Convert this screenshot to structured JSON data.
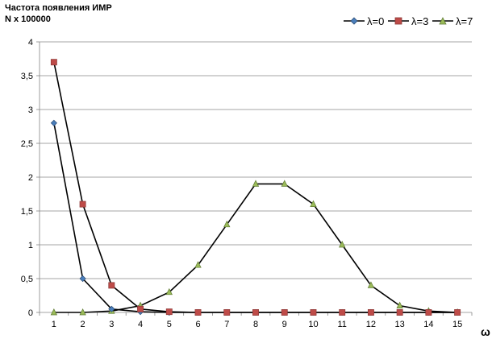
{
  "chart_data": {
    "type": "line",
    "ylabel_lines": [
      "Частота появления ИМР",
      "N x 100000"
    ],
    "xlabel": "ω",
    "x": [
      1,
      2,
      3,
      4,
      5,
      6,
      7,
      8,
      9,
      10,
      11,
      12,
      13,
      14,
      15
    ],
    "ylim": [
      0,
      4
    ],
    "yticks": [
      "0",
      "0,5",
      "1",
      "1,5",
      "2",
      "2,5",
      "3",
      "3,5",
      "4"
    ],
    "grid": "horizontal",
    "legend_position": "top-right",
    "series": [
      {
        "name": "λ=0",
        "marker": "diamond",
        "color": "#4a7ebb",
        "values": [
          2.8,
          0.5,
          0.05,
          0.01,
          0.0,
          0.0,
          0.0,
          0.0,
          0.0,
          0.0,
          0.0,
          0.0,
          0.0,
          0.0,
          0.0
        ]
      },
      {
        "name": "λ=3",
        "marker": "square",
        "color": "#be4b48",
        "values": [
          3.7,
          1.6,
          0.4,
          0.05,
          0.01,
          0.0,
          0.0,
          0.0,
          0.0,
          0.0,
          0.0,
          0.0,
          0.0,
          0.0,
          0.0
        ]
      },
      {
        "name": "λ=7",
        "marker": "triangle",
        "color": "#9bbb59",
        "values": [
          0.0,
          0.0,
          0.02,
          0.1,
          0.3,
          0.7,
          1.3,
          1.9,
          1.9,
          1.6,
          1.0,
          0.4,
          0.1,
          0.02,
          0.0
        ]
      }
    ]
  }
}
